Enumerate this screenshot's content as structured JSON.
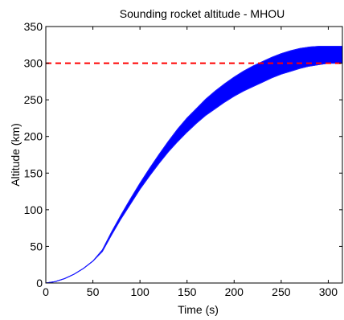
{
  "chart_data": {
    "type": "area",
    "title": "Sounding rocket altitude - MHOU",
    "xlabel": "Time (s)",
    "ylabel": "Altitude (km)",
    "xlim": [
      0,
      315
    ],
    "ylim": [
      0,
      350
    ],
    "xticks": [
      0,
      50,
      100,
      150,
      200,
      250,
      300
    ],
    "yticks": [
      0,
      50,
      100,
      150,
      200,
      250,
      300,
      350
    ],
    "grid": false,
    "band_color": "#0000ff",
    "series": [
      {
        "role": "upper",
        "x": [
          0,
          10,
          20,
          30,
          40,
          50,
          60,
          70,
          80,
          90,
          100,
          110,
          120,
          130,
          140,
          150,
          160,
          170,
          180,
          190,
          200,
          210,
          220,
          230,
          240,
          250,
          260,
          270,
          280,
          290,
          300,
          310,
          315
        ],
        "y": [
          0,
          2,
          6,
          12,
          20,
          30,
          45,
          70,
          93,
          115,
          136,
          156,
          175,
          193,
          210,
          225,
          238,
          251,
          262,
          272,
          281,
          289,
          296,
          302,
          308,
          313,
          317,
          320,
          322,
          323,
          323,
          323,
          323
        ]
      },
      {
        "role": "lower",
        "x": [
          0,
          10,
          20,
          30,
          40,
          50,
          60,
          70,
          80,
          90,
          100,
          110,
          120,
          130,
          140,
          150,
          160,
          170,
          180,
          190,
          200,
          210,
          220,
          230,
          240,
          250,
          260,
          270,
          280,
          290,
          300,
          310,
          315
        ],
        "y": [
          0,
          2,
          6,
          12,
          20,
          30,
          43,
          66,
          88,
          108,
          128,
          146,
          163,
          179,
          193,
          206,
          218,
          229,
          238,
          247,
          255,
          262,
          268,
          274,
          280,
          285,
          289,
          293,
          296,
          298,
          300,
          300,
          300
        ]
      }
    ],
    "reference_line": {
      "y": 300,
      "color": "#ff0000",
      "style": "dashed"
    }
  }
}
